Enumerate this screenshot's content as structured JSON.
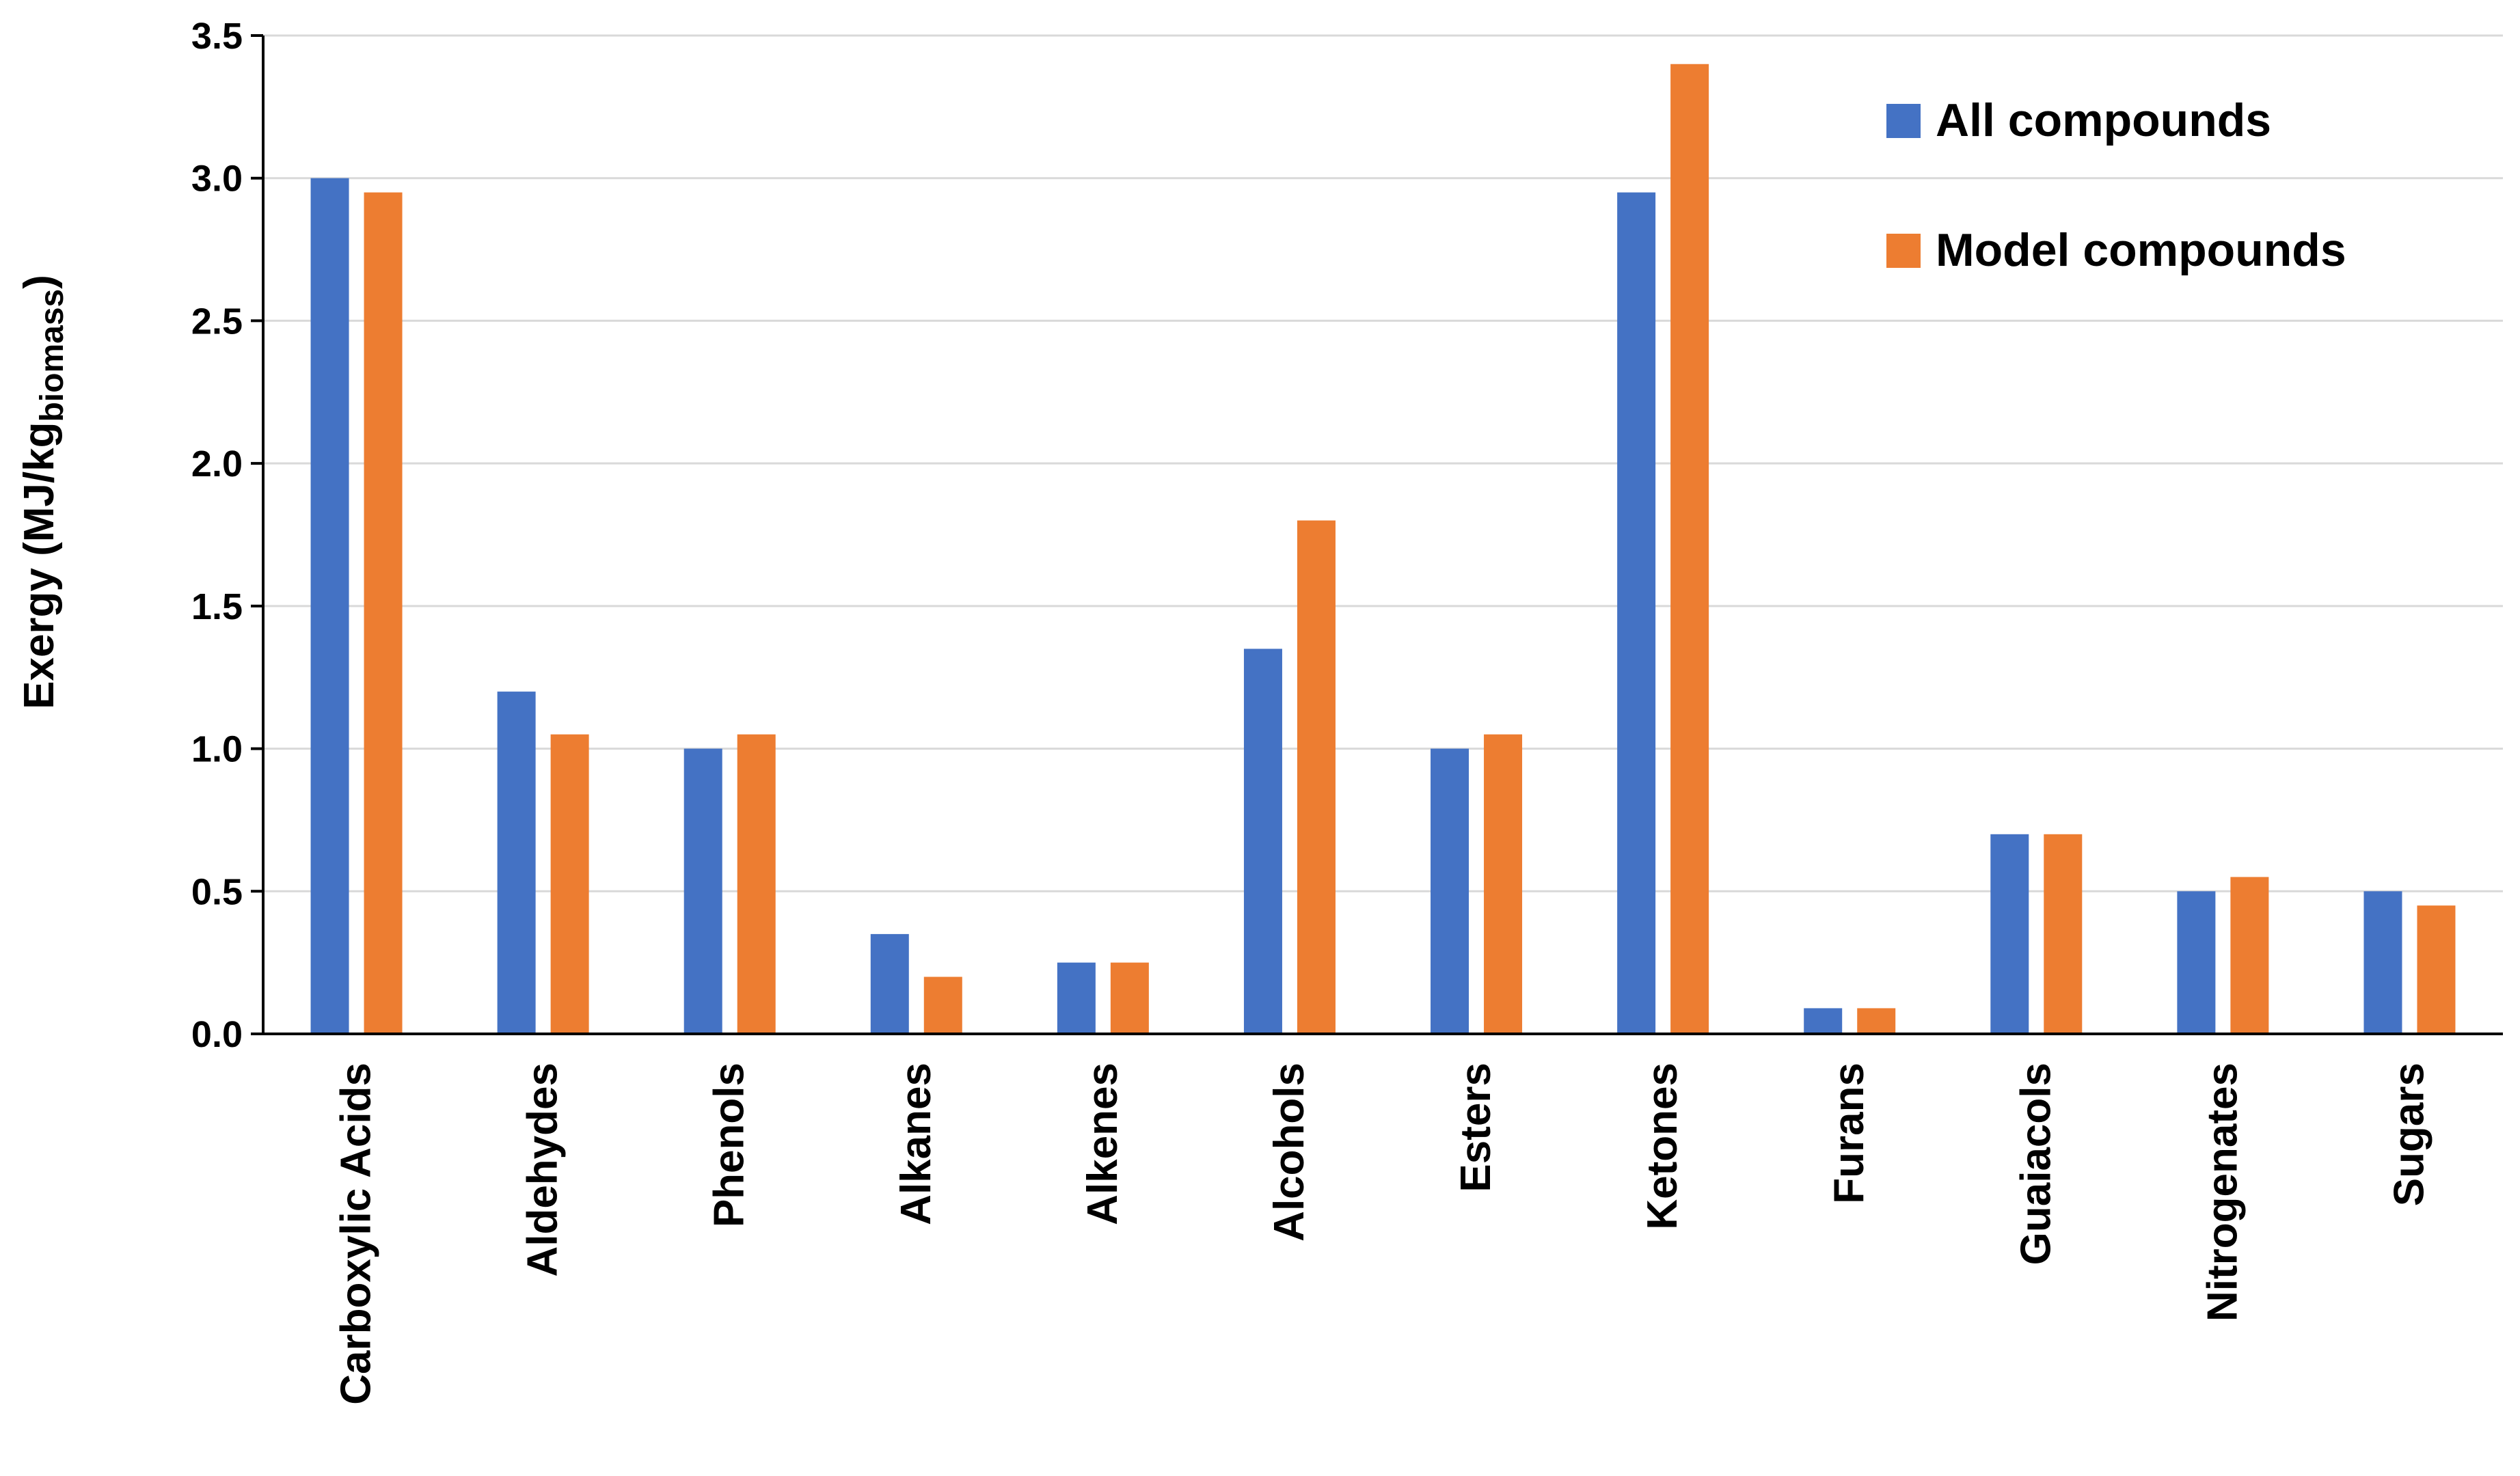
{
  "chart_data": {
    "type": "bar",
    "title": "",
    "xlabel": "",
    "ylabel": "Exergy (MJ/kg",
    "ylabel_subscript": "biomass",
    "ylabel_close": ")",
    "ylim": [
      0,
      3.5
    ],
    "yticks": [
      "0.0",
      "0.5",
      "1.0",
      "1.5",
      "2.0",
      "2.5",
      "3.0",
      "3.5"
    ],
    "grid": true,
    "legend_position": "top-right",
    "categories": [
      "Carboxylic Acids",
      "Aldehydes",
      "Phenols",
      "Alkanes",
      "Alkenes",
      "Alcohols",
      "Esters",
      "Ketones",
      "Furans",
      "Guaiacols",
      "Nitrogenates",
      "Sugars"
    ],
    "series": [
      {
        "name": "All compounds",
        "color": "#4472C4",
        "values": [
          3.0,
          1.2,
          1.0,
          0.35,
          0.25,
          1.35,
          1.0,
          2.95,
          0.09,
          0.7,
          0.5,
          0.5
        ]
      },
      {
        "name": "Model compounds",
        "color": "#ED7D31",
        "values": [
          2.95,
          1.05,
          1.05,
          0.2,
          0.25,
          1.8,
          1.05,
          3.4,
          0.09,
          0.7,
          0.55,
          0.45
        ]
      }
    ]
  }
}
